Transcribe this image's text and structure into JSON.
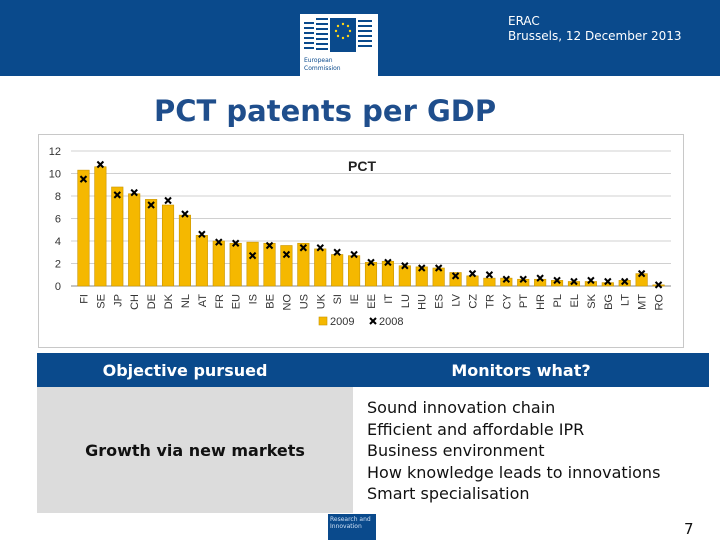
{
  "header": {
    "org_line1": "ERAC",
    "org_line2": "Brussels, 12 December 2013",
    "logo_text_line1": "European",
    "logo_text_line2": "Commission"
  },
  "slide_title": "PCT patents per GDP",
  "colors": {
    "brand_blue": "#0a4a8c",
    "bar_fill": "#f5b800",
    "marker": "#000000"
  },
  "chart_data": {
    "type": "bar",
    "title": "PCT",
    "categories": [
      "FI",
      "SE",
      "JP",
      "CH",
      "DE",
      "DK",
      "NL",
      "AT",
      "FR",
      "EU",
      "IS",
      "BE",
      "NO",
      "US",
      "UK",
      "SI",
      "IE",
      "EE",
      "IT",
      "LU",
      "HU",
      "ES",
      "LV",
      "CZ",
      "TR",
      "CY",
      "PT",
      "HR",
      "PL",
      "EL",
      "SK",
      "BG",
      "LT",
      "MT",
      "RO"
    ],
    "series": [
      {
        "name": "2009",
        "style": "bar",
        "values": [
          10.3,
          10.6,
          8.8,
          8.2,
          7.7,
          7.2,
          6.3,
          4.5,
          4.0,
          3.8,
          3.9,
          3.8,
          3.6,
          3.8,
          3.3,
          2.8,
          2.7,
          2.1,
          2.2,
          1.8,
          1.7,
          1.6,
          1.2,
          0.9,
          0.7,
          0.7,
          0.6,
          0.6,
          0.5,
          0.4,
          0.4,
          0.3,
          0.5,
          1.1,
          0.1
        ]
      },
      {
        "name": "2008",
        "style": "marker",
        "values": [
          9.5,
          10.8,
          8.1,
          8.3,
          7.2,
          7.6,
          6.4,
          4.6,
          3.9,
          3.8,
          2.7,
          3.6,
          2.8,
          3.4,
          3.4,
          3.0,
          2.8,
          2.1,
          2.1,
          1.8,
          1.6,
          1.6,
          0.9,
          1.1,
          1.0,
          0.6,
          0.6,
          0.7,
          0.5,
          0.4,
          0.5,
          0.4,
          0.4,
          1.1,
          0.1
        ]
      }
    ],
    "y_ticks": [
      0,
      2,
      4,
      6,
      8,
      10,
      12
    ],
    "ylim": [
      0,
      12
    ],
    "legend": [
      "2009",
      "2008"
    ],
    "legend_position": "bottom-center"
  },
  "table": {
    "col_left_header": "Objective pursued",
    "col_right_header": "Monitors what?",
    "objective": "Growth via new markets",
    "monitors": [
      "Sound innovation chain",
      "Efficient and affordable IPR",
      "Business environment",
      "How knowledge leads to innovations",
      "Smart specialisation"
    ]
  },
  "footer": {
    "logo_line1": "Research and",
    "logo_line2": "Innovation",
    "page_number": "7"
  }
}
